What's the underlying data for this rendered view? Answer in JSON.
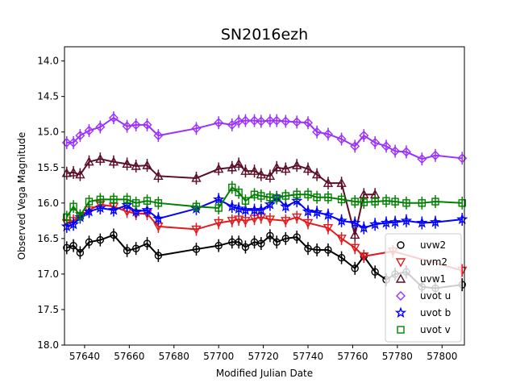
{
  "chart_data": {
    "type": "line",
    "title": "SN2016ezh",
    "xlabel": "Modified Julian Date",
    "ylabel": "Observed Vega Magnitude",
    "xlim": [
      57631,
      57810
    ],
    "ylim": [
      18.0,
      13.8
    ],
    "y_inverted": true,
    "xticks": [
      57640,
      57660,
      57680,
      57700,
      57720,
      57740,
      57760,
      57780,
      57800
    ],
    "yticks": [
      14.0,
      14.5,
      15.0,
      15.5,
      16.0,
      16.5,
      17.0,
      17.5,
      18.0
    ],
    "ytick_labels": [
      "14.0",
      "14.5",
      "15.0",
      "15.5",
      "16.0",
      "16.5",
      "17.0",
      "17.5",
      "18.0"
    ],
    "grid": false,
    "legend_position": "lower-right",
    "series": [
      {
        "name": "uvw2",
        "marker": "circle",
        "color": "#000000",
        "x": [
          57632,
          57635,
          57638,
          57642,
          57647,
          57653,
          57659,
          57663,
          57668,
          57673,
          57690,
          57700,
          57706,
          57709,
          57712,
          57716,
          57719,
          57723,
          57726,
          57730,
          57735,
          57740,
          57744,
          57749,
          57755,
          57761,
          57765,
          57770,
          57775,
          57779,
          57784,
          57791,
          57797,
          57809
        ],
        "y": [
          16.63,
          16.6,
          16.7,
          16.55,
          16.52,
          16.45,
          16.67,
          16.64,
          16.57,
          16.74,
          16.65,
          16.6,
          16.55,
          16.55,
          16.62,
          16.55,
          16.57,
          16.46,
          16.55,
          16.5,
          16.48,
          16.64,
          16.66,
          16.66,
          16.77,
          16.92,
          16.75,
          16.97,
          17.08,
          17.0,
          16.97,
          17.18,
          17.2,
          17.15
        ]
      },
      {
        "name": "uvm2",
        "marker": "triangle-down",
        "color": "#e31a1c",
        "x": [
          57632,
          57635,
          57638,
          57642,
          57647,
          57653,
          57659,
          57663,
          57668,
          57673,
          57690,
          57700,
          57706,
          57709,
          57712,
          57716,
          57719,
          57723,
          57730,
          57735,
          57740,
          57749,
          57755,
          57761,
          57765,
          57778,
          57809
        ],
        "y": [
          16.28,
          16.25,
          16.18,
          16.1,
          16.02,
          16.05,
          16.12,
          16.15,
          16.15,
          16.33,
          16.37,
          16.28,
          16.25,
          16.23,
          16.25,
          16.22,
          16.2,
          16.23,
          16.25,
          16.2,
          16.28,
          16.35,
          16.5,
          16.63,
          16.75,
          16.68,
          16.95
        ]
      },
      {
        "name": "uvw1",
        "marker": "triangle-up",
        "color": "#5c0e26",
        "x": [
          57632,
          57635,
          57638,
          57642,
          57647,
          57653,
          57659,
          57663,
          57668,
          57673,
          57690,
          57700,
          57706,
          57709,
          57712,
          57716,
          57719,
          57723,
          57726,
          57730,
          57735,
          57740,
          57744,
          57749,
          57755,
          57761,
          57765,
          57770
        ],
        "y": [
          15.58,
          15.57,
          15.6,
          15.42,
          15.38,
          15.42,
          15.45,
          15.48,
          15.47,
          15.62,
          15.65,
          15.52,
          15.5,
          15.45,
          15.55,
          15.55,
          15.6,
          15.62,
          15.5,
          15.52,
          15.47,
          15.52,
          15.6,
          15.72,
          15.72,
          16.45,
          15.88,
          15.88
        ]
      },
      {
        "name": "uvot u",
        "marker": "diamond",
        "color": "#9b30ff",
        "x": [
          57632,
          57635,
          57638,
          57642,
          57647,
          57653,
          57659,
          57663,
          57668,
          57673,
          57690,
          57700,
          57706,
          57709,
          57712,
          57716,
          57719,
          57723,
          57726,
          57730,
          57735,
          57740,
          57744,
          57749,
          57755,
          57761,
          57765,
          57770,
          57775,
          57779,
          57784,
          57791,
          57797,
          57809
        ],
        "y": [
          15.15,
          15.15,
          15.05,
          14.98,
          14.93,
          14.8,
          14.92,
          14.9,
          14.9,
          15.05,
          14.95,
          14.87,
          14.9,
          14.85,
          14.84,
          14.84,
          14.85,
          14.84,
          14.84,
          14.85,
          14.86,
          14.87,
          15.0,
          15.03,
          15.1,
          15.2,
          15.05,
          15.15,
          15.2,
          15.27,
          15.28,
          15.38,
          15.33,
          15.37
        ]
      },
      {
        "name": "uvot b",
        "marker": "star",
        "color": "#0000ff",
        "x": [
          57632,
          57635,
          57638,
          57642,
          57647,
          57653,
          57659,
          57663,
          57668,
          57673,
          57690,
          57700,
          57706,
          57709,
          57712,
          57716,
          57719,
          57723,
          57726,
          57730,
          57735,
          57740,
          57744,
          57749,
          57755,
          57761,
          57765,
          57770,
          57775,
          57779,
          57784,
          57791,
          57797,
          57809
        ],
        "y": [
          16.33,
          16.3,
          16.2,
          16.12,
          16.07,
          16.1,
          16.03,
          16.12,
          16.1,
          16.22,
          16.08,
          15.95,
          16.05,
          16.08,
          16.1,
          16.1,
          16.1,
          16.02,
          15.92,
          16.05,
          15.97,
          16.12,
          16.13,
          16.17,
          16.25,
          16.28,
          16.35,
          16.3,
          16.28,
          16.27,
          16.25,
          16.28,
          16.27,
          16.23
        ]
      },
      {
        "name": "uvot v",
        "marker": "square",
        "color": "#008000",
        "x": [
          57632,
          57635,
          57638,
          57642,
          57647,
          57653,
          57659,
          57663,
          57668,
          57673,
          57690,
          57700,
          57706,
          57709,
          57712,
          57716,
          57719,
          57723,
          57726,
          57730,
          57735,
          57740,
          57744,
          57749,
          57755,
          57761,
          57765,
          57770,
          57775,
          57779,
          57784,
          57791,
          57797,
          57809
        ],
        "y": [
          16.2,
          16.05,
          16.18,
          15.98,
          15.95,
          15.95,
          15.95,
          16.0,
          15.97,
          16.0,
          16.05,
          16.07,
          15.78,
          15.85,
          15.97,
          15.88,
          15.9,
          15.92,
          15.93,
          15.9,
          15.88,
          15.88,
          15.92,
          15.92,
          15.95,
          15.98,
          15.99,
          15.98,
          15.97,
          15.98,
          16.0,
          16.0,
          15.98,
          16.0
        ]
      }
    ]
  }
}
